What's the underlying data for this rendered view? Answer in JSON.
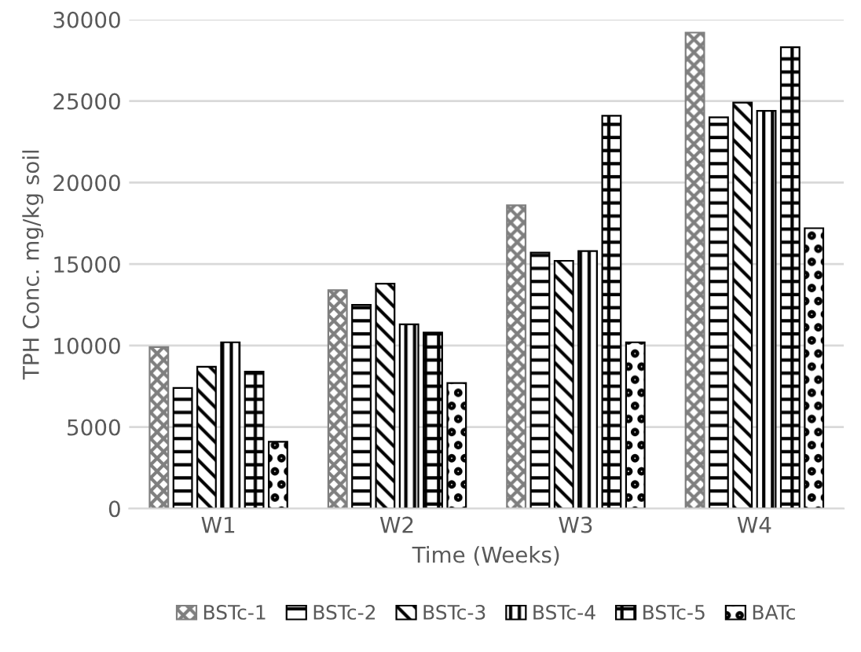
{
  "chart_data": {
    "type": "bar",
    "xlabel": "Time (Weeks)",
    "ylabel": "TPH Conc. mg/kg soil",
    "categories": [
      "W1",
      "W2",
      "W3",
      "W4"
    ],
    "series": [
      {
        "name": "BSTc-1",
        "color": "#7f7f7f",
        "values": [
          9900,
          13400,
          18600,
          29200
        ]
      },
      {
        "name": "BSTc-2",
        "color": "#000000",
        "values": [
          7400,
          12500,
          15700,
          24000
        ]
      },
      {
        "name": "BSTc-3",
        "color": "#000000",
        "values": [
          8700,
          13800,
          15200,
          24900
        ]
      },
      {
        "name": "BSTc-4",
        "color": "#000000",
        "values": [
          10200,
          11300,
          15800,
          24400
        ]
      },
      {
        "name": "BSTc-5",
        "color": "#000000",
        "values": [
          8400,
          10800,
          24100,
          28300
        ]
      },
      {
        "name": "BATc",
        "color": "#000000",
        "values": [
          4100,
          7700,
          10200,
          17200
        ]
      }
    ],
    "ylim": [
      0,
      30000
    ],
    "yticks": [
      0,
      5000,
      10000,
      15000,
      20000,
      25000,
      30000
    ],
    "grid": "y",
    "legend": "bottom"
  }
}
